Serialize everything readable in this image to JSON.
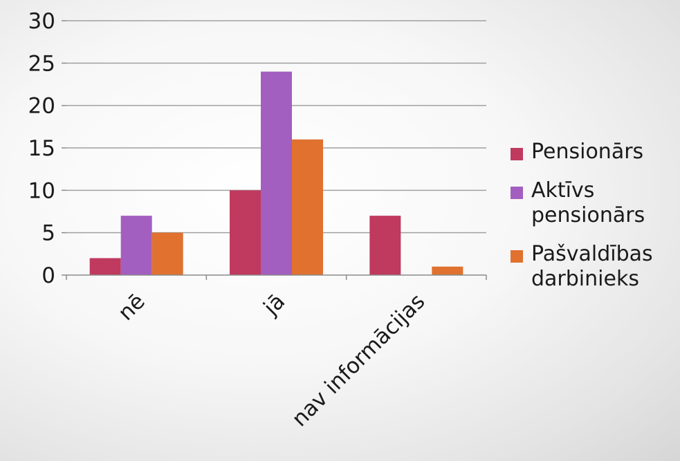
{
  "chart_data": {
    "type": "bar",
    "categories": [
      "nē",
      "jā",
      "nav informācijas"
    ],
    "series": [
      {
        "name": "Pensionārs",
        "color": "#c0395e",
        "values": [
          2,
          10,
          7
        ]
      },
      {
        "name": "Aktīvs pensionārs",
        "color": "#a25fbf",
        "values": [
          7,
          24,
          0
        ]
      },
      {
        "name": "Pašvaldības darbinieks",
        "color": "#e0712f",
        "values": [
          5,
          16,
          1
        ]
      }
    ],
    "ylim": [
      0,
      30
    ],
    "yticks": [
      0,
      5,
      10,
      15,
      20,
      25,
      30
    ],
    "grid": true,
    "legend_position": "right",
    "title": "",
    "xlabel": "",
    "ylabel": ""
  },
  "legend": {
    "items": [
      {
        "line1": "Pensionārs",
        "line2": ""
      },
      {
        "line1": "Aktīvs",
        "line2": "pensionārs"
      },
      {
        "line1": "Pašvaldības",
        "line2": "darbinieks"
      }
    ]
  }
}
